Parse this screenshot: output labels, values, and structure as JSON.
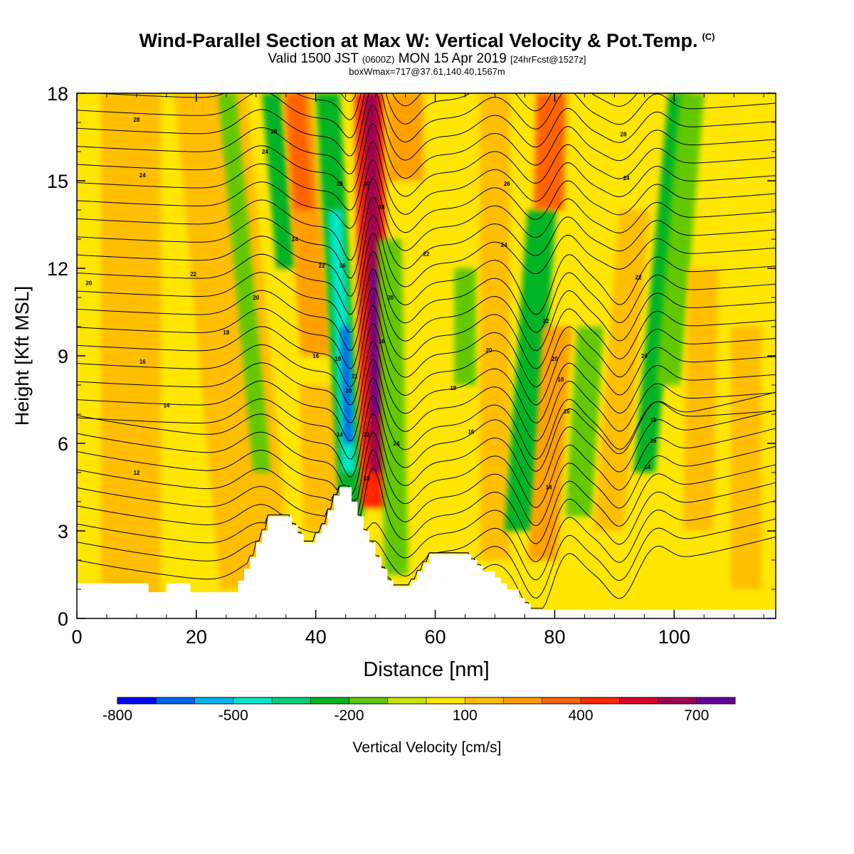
{
  "title": {
    "line1": "Wind-Parallel Section at Max W: Vertical Velocity & Pot.Temp.",
    "copyright": "(C)",
    "line2_a": "Valid 1500 JST",
    "line2_b": "(0600Z)",
    "line2_c": "MON 15 Apr 2019",
    "line2_d": "[24hrFcst@1527z]",
    "line3": "boxWmax=717@37.61,140.40,1567m"
  },
  "chart_data": {
    "type": "heatmap",
    "xlabel": "Distance [nm]",
    "ylabel": "Height [Kft MSL]",
    "xlim": [
      0,
      117
    ],
    "ylim": [
      0,
      18
    ],
    "x_ticks": [
      0,
      20,
      40,
      60,
      80,
      100
    ],
    "y_ticks": [
      0,
      3,
      6,
      9,
      12,
      15,
      18
    ],
    "colorbar": {
      "label": "Vertical Velocity [cm/s]",
      "bounds": [
        -800,
        800
      ],
      "tick_values": [
        -800,
        -500,
        -200,
        100,
        400,
        700
      ],
      "tick_labels": [
        "-800",
        "-500",
        "-200",
        "100",
        "400",
        "700"
      ],
      "colors": [
        "#0000f0",
        "#0064f0",
        "#00b4f0",
        "#00e6c8",
        "#00d278",
        "#00b428",
        "#64c800",
        "#c8e600",
        "#ffe600",
        "#ffbe00",
        "#ffa000",
        "#ff6400",
        "#ff2800",
        "#dc0028",
        "#a00050",
        "#640096"
      ]
    },
    "terrain": [
      [
        0,
        1.2
      ],
      [
        12,
        1.2
      ],
      [
        12,
        0.9
      ],
      [
        15,
        0.9
      ],
      [
        15,
        1.2
      ],
      [
        19,
        1.2
      ],
      [
        19,
        0.9
      ],
      [
        27,
        0.9
      ],
      [
        27,
        1.3
      ],
      [
        28,
        1.3
      ],
      [
        28,
        1.7
      ],
      [
        29,
        1.7
      ],
      [
        29,
        2.1
      ],
      [
        30,
        2.1
      ],
      [
        30,
        2.6
      ],
      [
        31,
        2.6
      ],
      [
        31,
        3.0
      ],
      [
        32,
        3.0
      ],
      [
        32,
        3.5
      ],
      [
        34,
        3.5
      ],
      [
        34,
        3.5
      ],
      [
        36,
        3.5
      ],
      [
        36,
        3.2
      ],
      [
        37,
        3.2
      ],
      [
        37,
        2.9
      ],
      [
        38,
        2.9
      ],
      [
        38,
        2.6
      ],
      [
        40,
        2.6
      ],
      [
        40,
        2.9
      ],
      [
        41,
        2.9
      ],
      [
        41,
        3.2
      ],
      [
        42,
        3.2
      ],
      [
        42,
        3.7
      ],
      [
        43,
        3.7
      ],
      [
        43,
        4.2
      ],
      [
        44,
        4.2
      ],
      [
        44,
        4.5
      ],
      [
        46,
        4.5
      ],
      [
        46,
        4.0
      ],
      [
        47,
        4.0
      ],
      [
        47,
        3.5
      ],
      [
        48,
        3.5
      ],
      [
        48,
        3.0
      ],
      [
        49,
        3.0
      ],
      [
        49,
        2.6
      ],
      [
        50,
        2.6
      ],
      [
        50,
        2.1
      ],
      [
        51,
        2.1
      ],
      [
        51,
        1.7
      ],
      [
        52,
        1.7
      ],
      [
        52,
        1.3
      ],
      [
        53,
        1.3
      ],
      [
        53,
        1.1
      ],
      [
        56,
        1.1
      ],
      [
        56,
        1.3
      ],
      [
        57,
        1.3
      ],
      [
        57,
        1.6
      ],
      [
        58,
        1.6
      ],
      [
        58,
        1.9
      ],
      [
        59,
        1.9
      ],
      [
        59,
        2.2
      ],
      [
        61,
        2.2
      ],
      [
        61,
        2.2
      ],
      [
        66,
        2.2
      ],
      [
        66,
        2.0
      ],
      [
        67,
        2.0
      ],
      [
        67,
        1.8
      ],
      [
        68,
        1.8
      ],
      [
        68,
        1.6
      ],
      [
        70,
        1.6
      ],
      [
        70,
        1.4
      ],
      [
        71,
        1.4
      ],
      [
        71,
        1.2
      ],
      [
        72,
        1.2
      ],
      [
        72,
        1.0
      ],
      [
        74,
        1.0
      ],
      [
        74,
        0.7
      ],
      [
        75,
        0.7
      ],
      [
        75,
        0.5
      ],
      [
        76,
        0.5
      ],
      [
        76,
        0.3
      ],
      [
        81,
        0.3
      ],
      [
        81,
        0.3
      ],
      [
        117,
        0.3
      ]
    ],
    "contour_labels": [
      {
        "x": 10,
        "y": 17.1,
        "text": "28"
      },
      {
        "x": 11,
        "y": 15.2,
        "text": "24"
      },
      {
        "x": 19.5,
        "y": 11.8,
        "text": "22"
      },
      {
        "x": 2,
        "y": 11.5,
        "text": "20"
      },
      {
        "x": 30,
        "y": 11.0,
        "text": "20"
      },
      {
        "x": 25,
        "y": 9.8,
        "text": "18"
      },
      {
        "x": 11,
        "y": 8.8,
        "text": "16"
      },
      {
        "x": 15,
        "y": 7.3,
        "text": "14"
      },
      {
        "x": 10,
        "y": 5.0,
        "text": "12"
      },
      {
        "x": 33,
        "y": 16.7,
        "text": "28"
      },
      {
        "x": 31.5,
        "y": 16.0,
        "text": "24"
      },
      {
        "x": 36.5,
        "y": 13.0,
        "text": "24"
      },
      {
        "x": 41,
        "y": 12.1,
        "text": "22"
      },
      {
        "x": 40,
        "y": 9.0,
        "text": "16"
      },
      {
        "x": 44,
        "y": 14.9,
        "text": "28"
      },
      {
        "x": 44.5,
        "y": 12.1,
        "text": "26"
      },
      {
        "x": 43.7,
        "y": 8.9,
        "text": "19"
      },
      {
        "x": 45.5,
        "y": 7.8,
        "text": "20"
      },
      {
        "x": 44,
        "y": 6.3,
        "text": "14"
      },
      {
        "x": 46.5,
        "y": 8.3,
        "text": "21"
      },
      {
        "x": 48.5,
        "y": 14.9,
        "text": "30"
      },
      {
        "x": 51,
        "y": 14.1,
        "text": "24"
      },
      {
        "x": 52.5,
        "y": 11.0,
        "text": "20"
      },
      {
        "x": 51,
        "y": 9.5,
        "text": "16"
      },
      {
        "x": 48.5,
        "y": 6.3,
        "text": "22"
      },
      {
        "x": 53.5,
        "y": 6.0,
        "text": "24"
      },
      {
        "x": 48.5,
        "y": 4.8,
        "text": "18"
      },
      {
        "x": 58.5,
        "y": 12.5,
        "text": "22"
      },
      {
        "x": 71.5,
        "y": 12.8,
        "text": "24"
      },
      {
        "x": 72,
        "y": 14.9,
        "text": "26"
      },
      {
        "x": 91.5,
        "y": 16.6,
        "text": "28"
      },
      {
        "x": 92,
        "y": 15.1,
        "text": "24"
      },
      {
        "x": 94,
        "y": 11.7,
        "text": "22"
      },
      {
        "x": 78.5,
        "y": 10.2,
        "text": "22"
      },
      {
        "x": 69,
        "y": 9.2,
        "text": "20"
      },
      {
        "x": 63,
        "y": 7.9,
        "text": "18"
      },
      {
        "x": 66,
        "y": 6.4,
        "text": "16"
      },
      {
        "x": 80,
        "y": 8.9,
        "text": "20"
      },
      {
        "x": 81,
        "y": 8.2,
        "text": "18"
      },
      {
        "x": 82,
        "y": 7.1,
        "text": "16"
      },
      {
        "x": 79,
        "y": 4.5,
        "text": "14"
      },
      {
        "x": 95,
        "y": 9.0,
        "text": "20"
      },
      {
        "x": 96.5,
        "y": 6.8,
        "text": "18"
      },
      {
        "x": 96.5,
        "y": 6.1,
        "text": "16"
      },
      {
        "x": 95.5,
        "y": 5.2,
        "text": "14"
      }
    ]
  }
}
